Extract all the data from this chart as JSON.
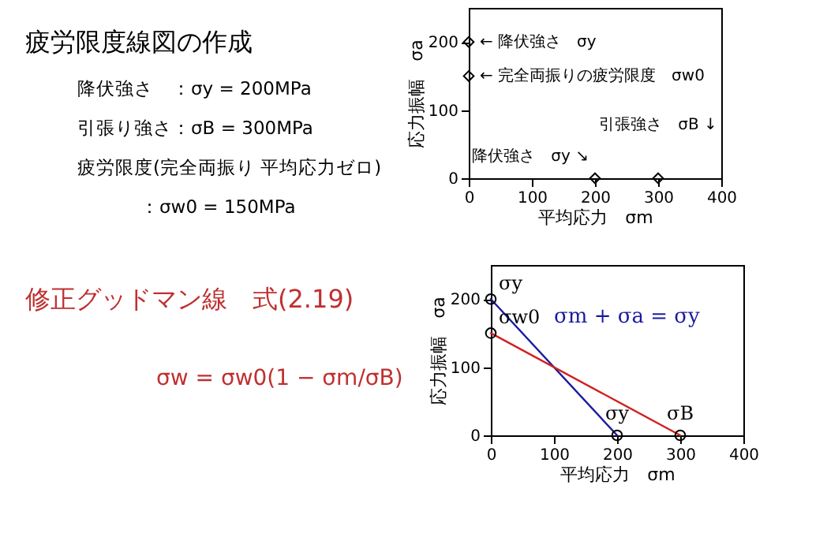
{
  "chart_data": [
    {
      "type": "other",
      "title": "疲労限度線図の作成",
      "annotations": [
        "降伏強さ　：σy = 200MPa",
        "引張り強さ：σB = 300MPa",
        "疲労限度(完全両振り 平均応力ゼロ)",
        "：σw0 = 150MPa"
      ]
    },
    {
      "type": "scatter",
      "x": [
        0,
        0,
        200,
        300
      ],
      "values": [
        200,
        150,
        0,
        0
      ],
      "marker": "diamond",
      "xlim": [
        0,
        400
      ],
      "xticks": [
        0,
        100,
        200,
        300,
        400
      ],
      "ylim": [
        0,
        250
      ],
      "yticks": [
        0,
        100,
        200
      ],
      "xlabel": "平均応力　σm",
      "ylabel": "応力振幅　σa",
      "grid": false,
      "annotations": [
        {
          "text": "← 降伏強さ　σy",
          "x": 0,
          "y": 200
        },
        {
          "text": "← 完全両振りの疲労限度　σw0",
          "x": 0,
          "y": 150
        },
        {
          "text": "降伏強さ　σy ↘",
          "x": 200,
          "y": 0
        },
        {
          "text": "引張強さ　σB ↓",
          "x": 300,
          "y": 0
        }
      ]
    },
    {
      "type": "other",
      "title": "修正グッドマン線　式(2.19)",
      "annotations": [
        "σw = σw0(1 − σm/σB)"
      ]
    },
    {
      "type": "line",
      "marker": "circle",
      "line_style": "solid",
      "xlim": [
        0,
        400
      ],
      "xticks": [
        0,
        100,
        200,
        300,
        400
      ],
      "ylim": [
        0,
        250
      ],
      "yticks": [
        0,
        100,
        200
      ],
      "xlabel": "平均応力　σm",
      "ylabel": "応力振幅　σa",
      "grid": false,
      "series": [
        {
          "x": [
            0,
            200
          ],
          "values": [
            200,
            0
          ],
          "color": "#1a1aa0"
        },
        {
          "x": [
            0,
            300
          ],
          "values": [
            150,
            0
          ],
          "color": "#d02020"
        }
      ],
      "annotations": [
        {
          "text": "σy",
          "x": 0,
          "y": 200
        },
        {
          "text": "σw0",
          "x": 0,
          "y": 150
        },
        {
          "text": "σy",
          "x": 200,
          "y": 0
        },
        {
          "text": "σB",
          "x": 300,
          "y": 0
        },
        "σm + σa = σy"
      ]
    }
  ]
}
